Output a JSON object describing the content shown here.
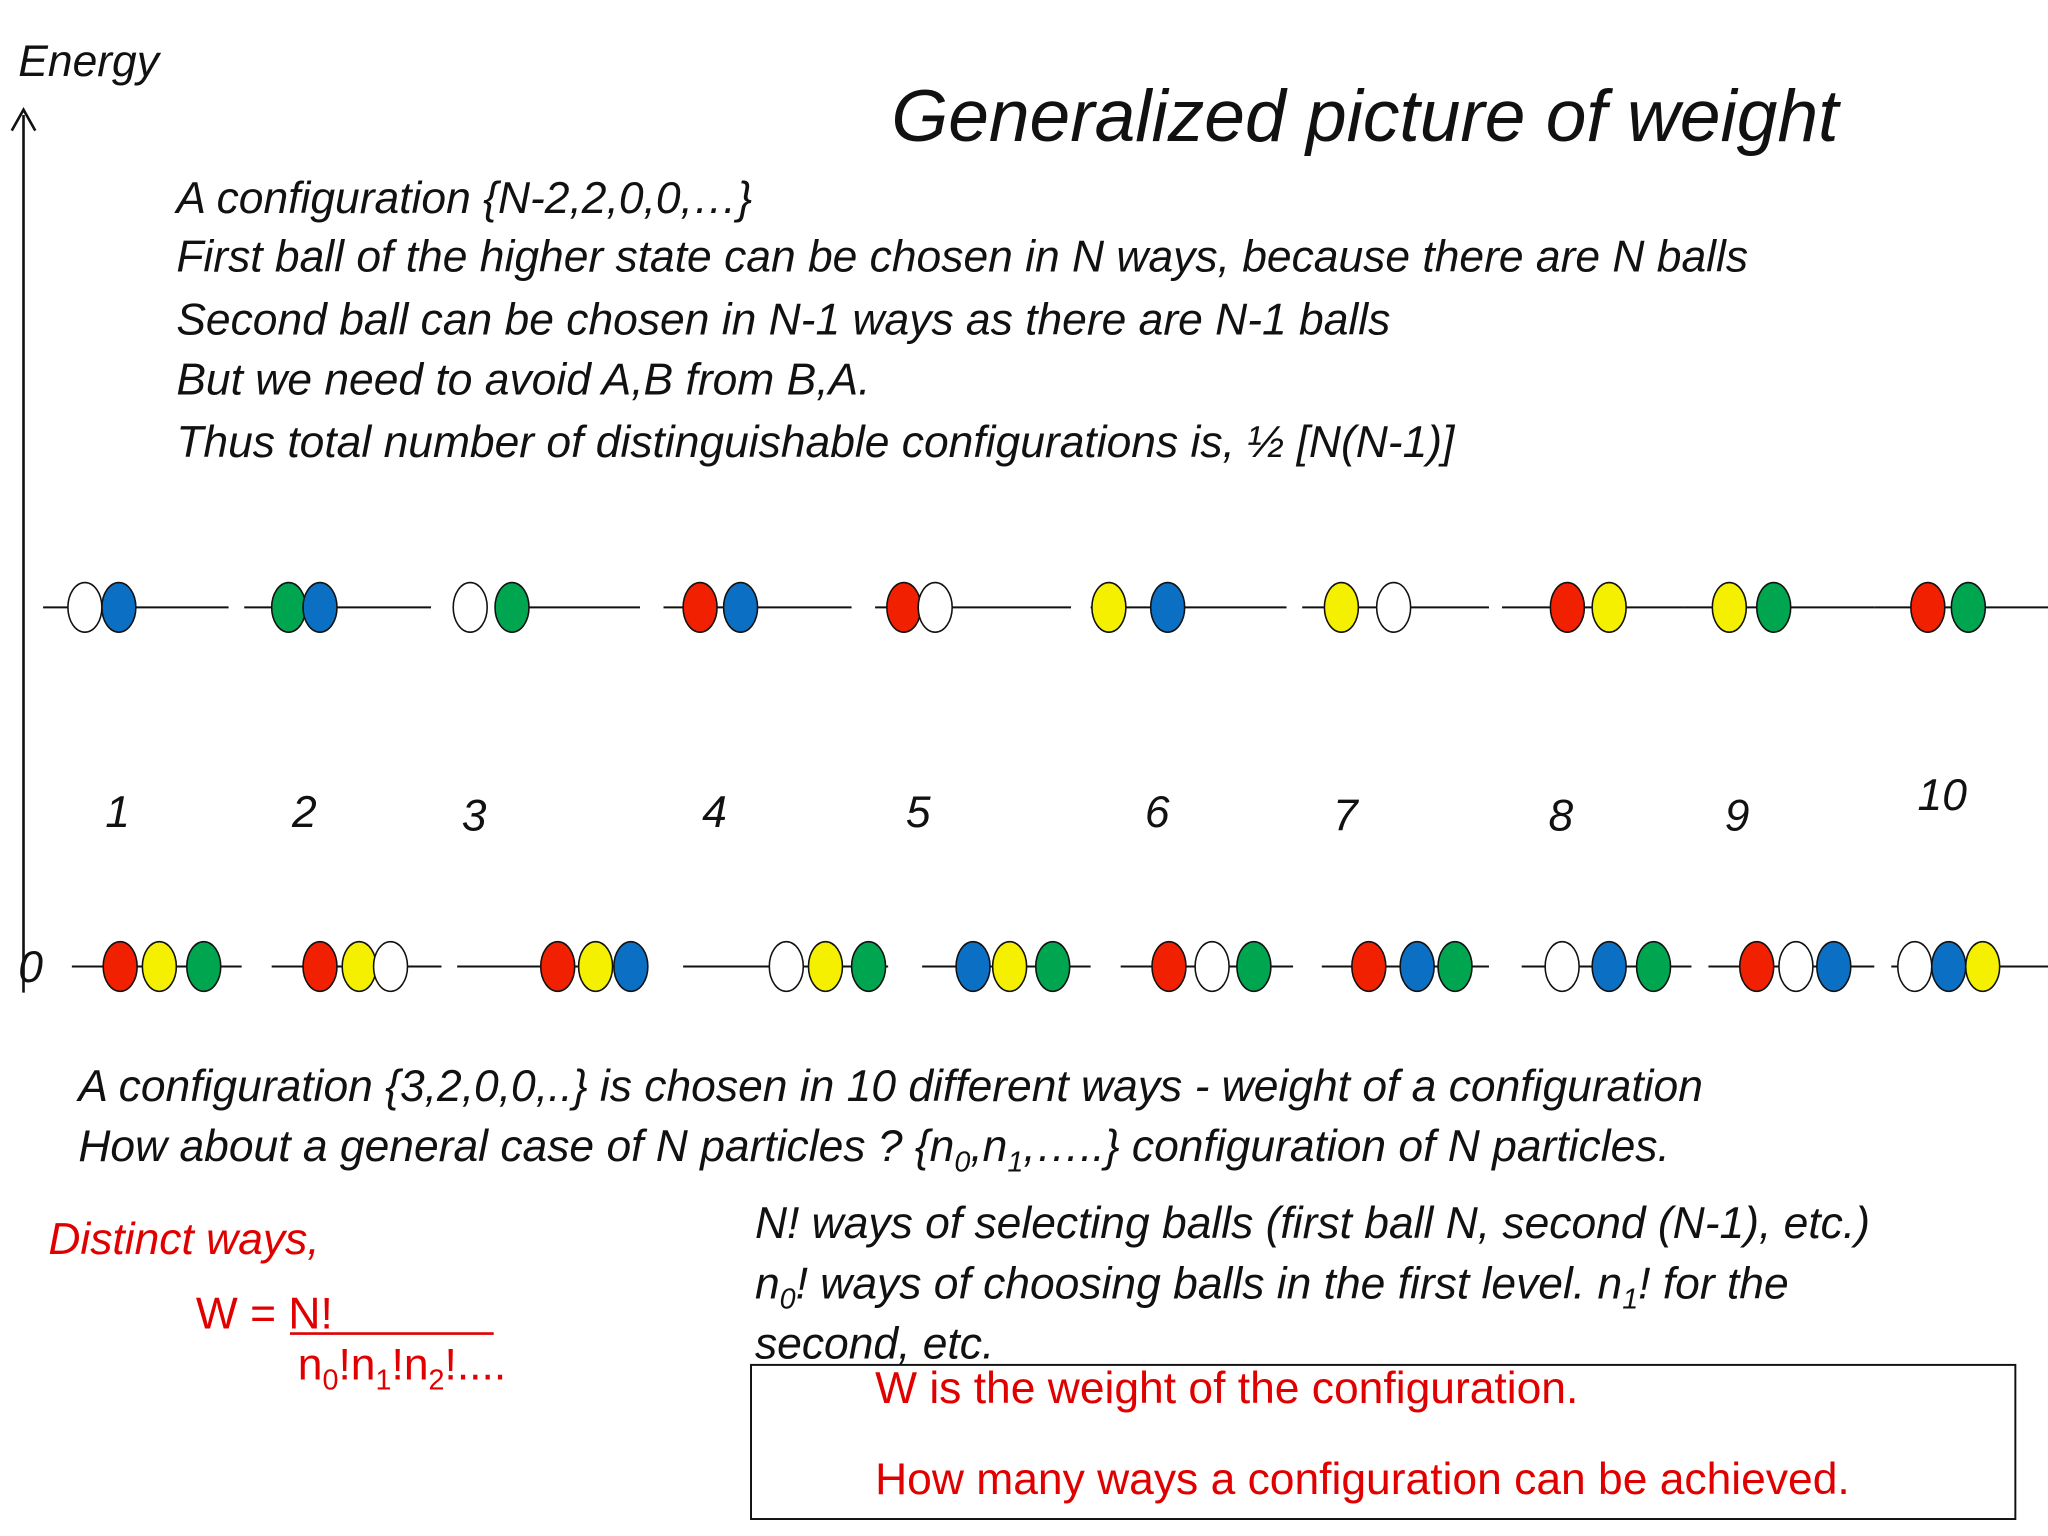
{
  "axis_label": "Energy",
  "title": "Generalized picture of weight",
  "intro": [
    "A configuration {N-2,2,0,0,…}",
    "First ball of the higher state can be chosen in N ways, because there are N balls",
    "Second ball can be chosen in N-1 ways as there are N-1 balls",
    "But we need to avoid A,B from B,A.",
    "Thus total number of distinguishable configurations is, ½ [N(N-1)]"
  ],
  "level_numbers": [
    "1",
    "2",
    "3",
    "4",
    "5",
    "6",
    "7",
    "8",
    "9",
    "10"
  ],
  "zero_label": "0",
  "summary": {
    "line1": "A configuration {3,2,0,0,..} is chosen in 10 different ways   - weight of a configuration",
    "line2": [
      "How about a general case of N particles ? {n",
      "0",
      ",n",
      "1",
      ",…..} configuration of N particles."
    ]
  },
  "formula": {
    "caption": "Distinct ways,",
    "lhs": "W = ",
    "numerator": "N!",
    "denominator": [
      "n",
      "0",
      "!n",
      "1",
      "!n",
      "2",
      "!...."
    ]
  },
  "explanation": {
    "line1": "N! ways of selecting balls (first ball N, second (N-1), etc.)",
    "line2": [
      "n",
      "0",
      "! ways of choosing balls in the first level. n",
      "1",
      "! for the"
    ],
    "line3": "second, etc."
  },
  "box": [
    "W is the weight of the configuration.",
    "How many ways a configuration can be achieved."
  ]
}
